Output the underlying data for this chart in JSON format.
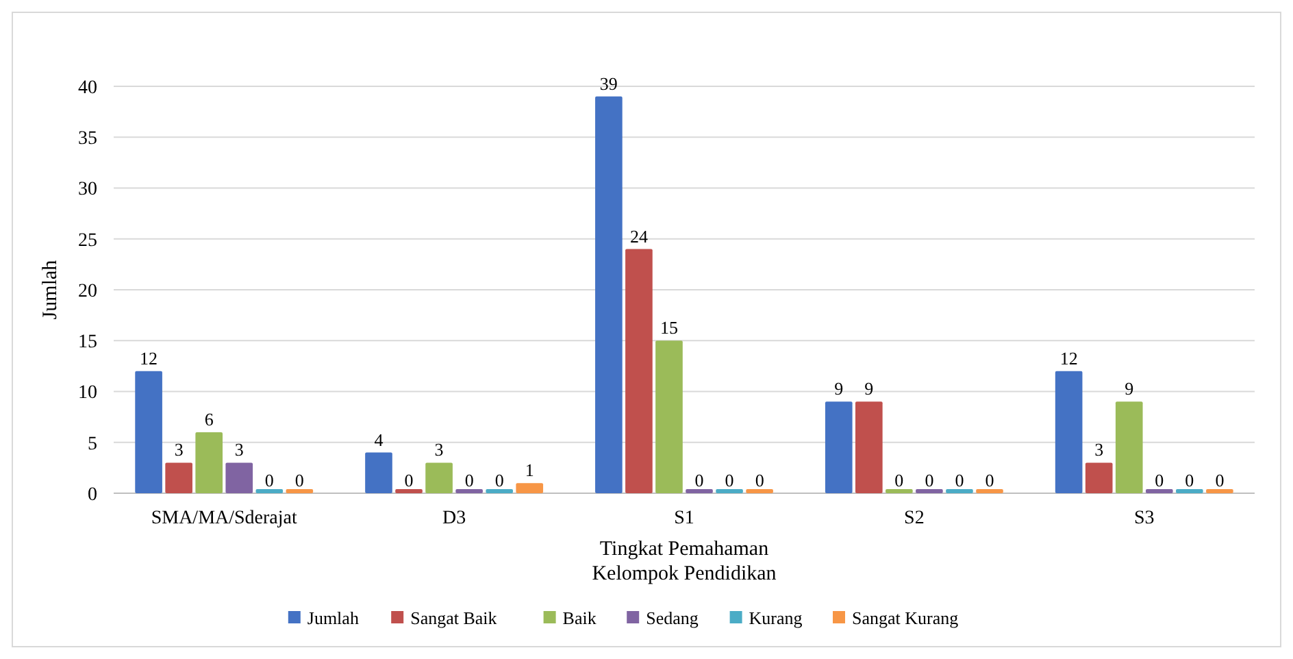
{
  "chart_data": {
    "type": "bar",
    "categories": [
      "SMA/MA/Sderajat",
      "D3",
      "S1",
      "S2",
      "S3"
    ],
    "series": [
      {
        "name": "Jumlah",
        "color": "#4472c4",
        "values": [
          12,
          4,
          39,
          9,
          12
        ]
      },
      {
        "name": "Sangat Baik",
        "color": "#c0504d",
        "values": [
          3,
          0,
          24,
          9,
          3
        ]
      },
      {
        "name": "Baik",
        "color": "#9bbb59",
        "values": [
          6,
          3,
          15,
          0,
          9
        ]
      },
      {
        "name": "Sedang",
        "color": "#8064a2",
        "values": [
          3,
          0,
          0,
          0,
          0
        ]
      },
      {
        "name": "Kurang",
        "color": "#4bacc6",
        "values": [
          0,
          0,
          0,
          0,
          0
        ]
      },
      {
        "name": "Sangat Kurang",
        "color": "#f79646",
        "values": [
          0,
          1,
          0,
          0,
          0
        ]
      }
    ],
    "xlabel": "Tingkat Pemahaman\nKelompok Pendidikan",
    "ylabel": "Jumlah",
    "ylim": [
      0,
      40
    ],
    "yticks": [
      0,
      5,
      10,
      15,
      20,
      25,
      30,
      35,
      40
    ],
    "grid": "y",
    "legend": "bottom",
    "data_labels": true
  }
}
